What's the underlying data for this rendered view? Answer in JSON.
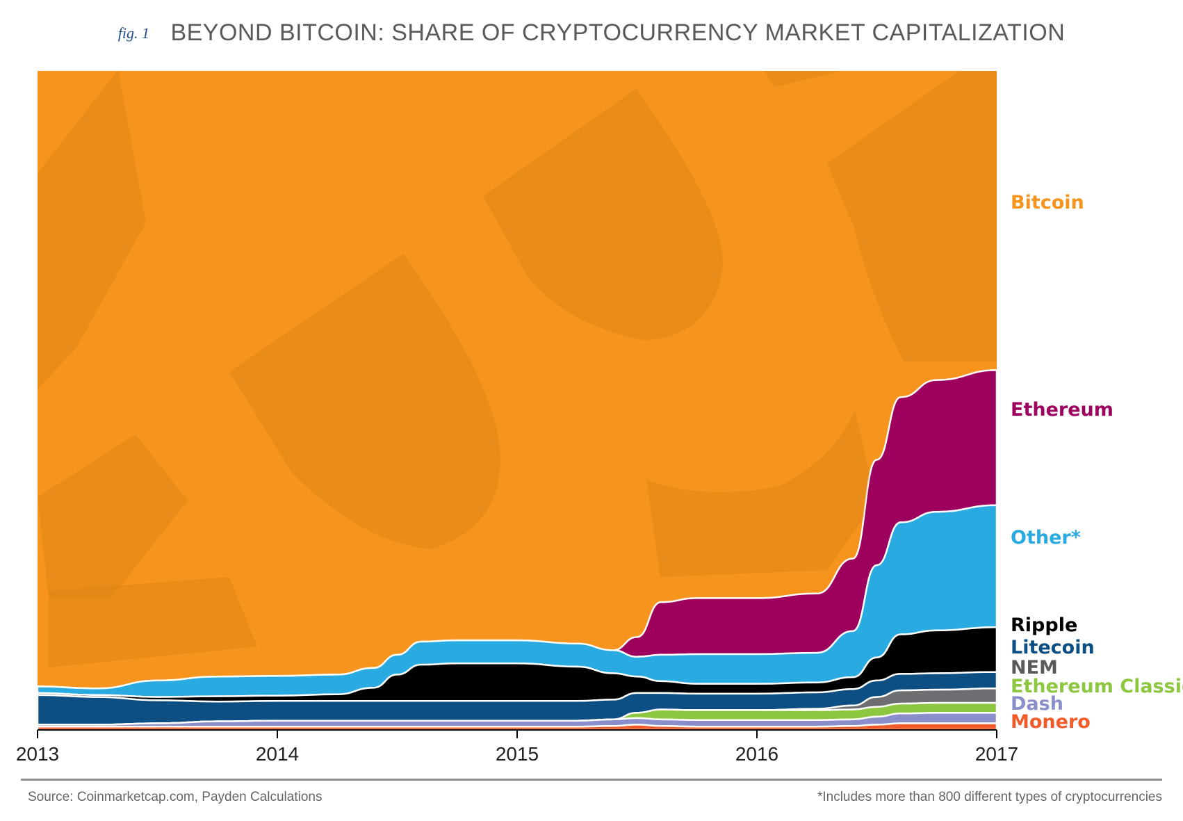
{
  "figure": {
    "label": "fig. 1",
    "title": "BEYOND BITCOIN: SHARE OF CRYPTOCURRENCY MARKET CAPITALIZATION"
  },
  "footer": {
    "source": "Source: Coinmarketcap.com, Payden Calculations",
    "note": "*Includes more than 800 different types of cryptocurrencies"
  },
  "chart_data": {
    "type": "area",
    "stacked": true,
    "normalized_percent": true,
    "title": "BEYOND BITCOIN: SHARE OF CRYPTOCURRENCY MARKET CAPITALIZATION",
    "xlabel": "",
    "ylabel": "",
    "x": [
      2013.0,
      2013.25,
      2013.5,
      2013.75,
      2014.0,
      2014.25,
      2014.4,
      2014.5,
      2014.6,
      2014.75,
      2015.0,
      2015.25,
      2015.4,
      2015.5,
      2015.6,
      2015.75,
      2016.0,
      2016.25,
      2016.4,
      2016.5,
      2016.6,
      2016.75,
      2017.0
    ],
    "xlim": [
      2013,
      2017
    ],
    "ylim": [
      0,
      100
    ],
    "x_ticks": [
      "2013",
      "2014",
      "2015",
      "2016",
      "2017"
    ],
    "legend_position": "right",
    "series": [
      {
        "name": "Monero",
        "color": "#f15a29",
        "values": [
          0.5,
          0.5,
          0.5,
          0.5,
          0.5,
          0.5,
          0.5,
          0.5,
          0.5,
          0.5,
          0.5,
          0.5,
          0.6,
          0.8,
          0.6,
          0.5,
          0.5,
          0.5,
          0.6,
          0.8,
          1.0,
          1.0,
          1.0
        ]
      },
      {
        "name": "Dash",
        "color": "#8a8fcb",
        "values": [
          0.3,
          0.3,
          0.5,
          0.8,
          0.9,
          0.9,
          0.9,
          0.9,
          0.9,
          0.9,
          0.9,
          0.9,
          1.0,
          1.0,
          1.0,
          1.0,
          1.0,
          1.0,
          1.0,
          1.2,
          1.5,
          1.6,
          1.6
        ]
      },
      {
        "name": "Ethereum Classic",
        "color": "#8dc63f",
        "values": [
          0,
          0,
          0,
          0,
          0,
          0,
          0,
          0,
          0,
          0,
          0,
          0,
          0,
          0.8,
          1.5,
          1.5,
          1.5,
          1.5,
          1.5,
          1.5,
          1.5,
          1.5,
          1.5
        ]
      },
      {
        "name": "NEM",
        "color": "#6d6e71",
        "values": [
          0,
          0,
          0,
          0,
          0,
          0,
          0,
          0,
          0,
          0,
          0,
          0,
          0,
          0,
          0,
          0,
          0,
          0.2,
          0.6,
          1.5,
          2.0,
          2.0,
          2.2
        ]
      },
      {
        "name": "Litecoin",
        "color": "#0d4f82",
        "values": [
          4.5,
          4.2,
          3.5,
          3.0,
          3.0,
          3.0,
          3.0,
          3.0,
          3.0,
          3.0,
          3.0,
          3.0,
          3.0,
          3.0,
          2.5,
          2.5,
          2.5,
          2.5,
          2.5,
          2.5,
          2.5,
          2.5,
          2.5
        ]
      },
      {
        "name": "Ripple",
        "color": "#000000",
        "values": [
          0.3,
          0.3,
          0.5,
          0.8,
          0.8,
          1.0,
          2.0,
          4.0,
          5.5,
          5.7,
          5.7,
          5.2,
          4.0,
          2.5,
          1.8,
          1.5,
          1.5,
          1.5,
          1.8,
          3.5,
          6.0,
          6.5,
          6.8
        ]
      },
      {
        "name": "Other*",
        "color": "#29abe2",
        "values": [
          1.0,
          1.0,
          2.5,
          3.0,
          3.0,
          3.0,
          3.0,
          3.0,
          3.5,
          3.5,
          3.5,
          3.5,
          3.5,
          3.0,
          4.0,
          4.5,
          4.5,
          4.5,
          7.0,
          14.0,
          17.0,
          18.0,
          18.5
        ]
      },
      {
        "name": "Ethereum",
        "color": "#9e005d",
        "values": [
          0,
          0,
          0,
          0,
          0,
          0,
          0,
          0,
          0,
          0,
          0,
          0,
          0,
          3.0,
          8.0,
          8.5,
          8.5,
          9.0,
          11.0,
          16.0,
          19.0,
          20.0,
          20.5
        ]
      },
      {
        "name": "Bitcoin",
        "color": "#f7941d",
        "values": [
          93.4,
          93.7,
          92.5,
          91.9,
          91.8,
          91.6,
          90.6,
          88.6,
          86.6,
          86.4,
          86.4,
          86.9,
          87.9,
          85.9,
          80.6,
          80.0,
          80.0,
          79.5,
          74.0,
          59.0,
          49.5,
          46.9,
          45.4
        ]
      }
    ]
  }
}
